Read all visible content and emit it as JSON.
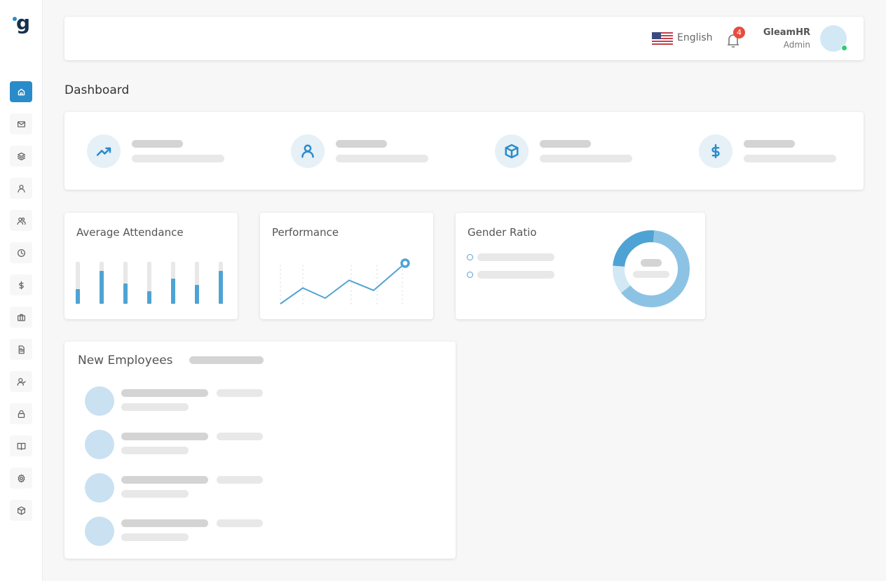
{
  "sidebar": {
    "logo": "g",
    "items": [
      {
        "icon": "home-icon",
        "active": true
      },
      {
        "icon": "mail-icon"
      },
      {
        "icon": "layers-icon"
      },
      {
        "icon": "user-icon"
      },
      {
        "icon": "users-icon"
      },
      {
        "icon": "clock-icon"
      },
      {
        "icon": "dollar-icon"
      },
      {
        "icon": "briefcase-icon"
      },
      {
        "icon": "document-icon"
      },
      {
        "icon": "user-check-icon"
      },
      {
        "icon": "lock-icon"
      },
      {
        "icon": "book-icon"
      },
      {
        "icon": "gear-icon"
      },
      {
        "icon": "box-icon"
      }
    ]
  },
  "header": {
    "language": "English",
    "notification_count": "4",
    "user_name": "GleamHR",
    "user_role": "Admin",
    "status_color": "#2ecc71"
  },
  "page_title": "Dashboard",
  "stats": [
    {
      "icon": "trending-up-icon"
    },
    {
      "icon": "user-icon"
    },
    {
      "icon": "box-icon"
    },
    {
      "icon": "dollar-icon"
    }
  ],
  "attendance": {
    "title": "Average Attendance",
    "levels": [
      0.35,
      0.78,
      0.48,
      0.3,
      0.6,
      0.45,
      0.78
    ]
  },
  "performance": {
    "title": "Performance",
    "values": [
      0,
      0.39,
      0.14,
      0.58,
      0.33,
      1
    ]
  },
  "gender": {
    "title": "Gender Ratio",
    "segments": [
      0.25,
      0.63,
      0.12
    ],
    "colors": [
      "#4fa3d4",
      "#8cc3e4",
      "#d3e8f5"
    ]
  },
  "new_employees": {
    "title": "New Employees",
    "count": 4
  },
  "colors": {
    "accent": "#2a8bca",
    "badge": "#e74c3c"
  }
}
